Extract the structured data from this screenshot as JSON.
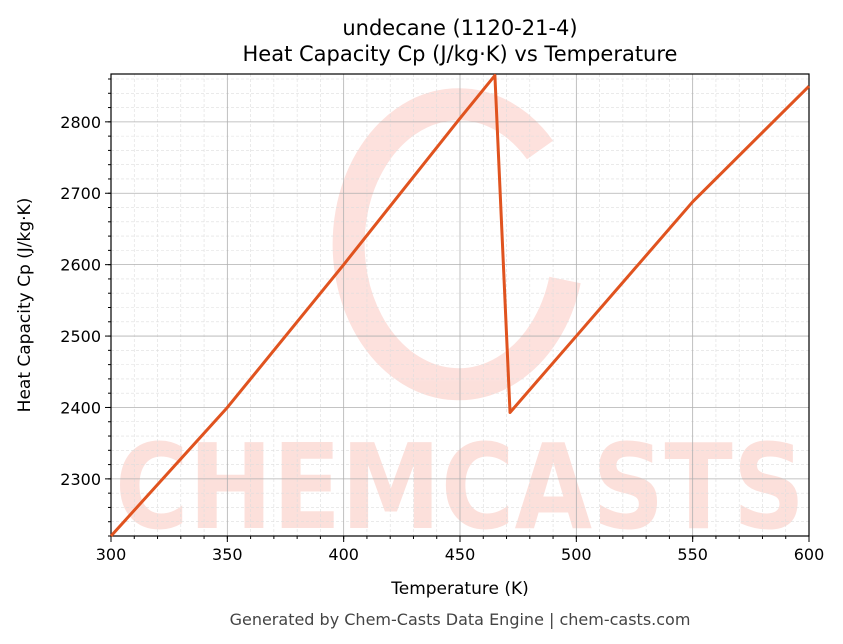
{
  "chart_data": {
    "type": "line",
    "title": "undecane (1120-21-4)",
    "subtitle": "Heat Capacity Cp (J/kg·K) vs Temperature",
    "xlabel": "Temperature (K)",
    "ylabel": "Heat Capacity Cp (J/kg·K)",
    "xlim": [
      300,
      600
    ],
    "ylim": [
      2220,
      2867
    ],
    "xticks": [
      300,
      350,
      400,
      450,
      500,
      550,
      600
    ],
    "yticks": [
      2300,
      2400,
      2500,
      2600,
      2700,
      2800
    ],
    "grid": true,
    "series": [
      {
        "name": "Cp",
        "color": "#e0531f",
        "x": [
          300,
          350,
          400,
          450,
          465,
          471.5,
          500,
          550,
          600
        ],
        "y": [
          2220,
          2400,
          2600,
          2805,
          2865,
          2393,
          2500,
          2688,
          2850
        ]
      }
    ],
    "watermark": "CHEMCASTS",
    "footer": "Generated by Chem-Casts Data Engine | chem-casts.com"
  }
}
